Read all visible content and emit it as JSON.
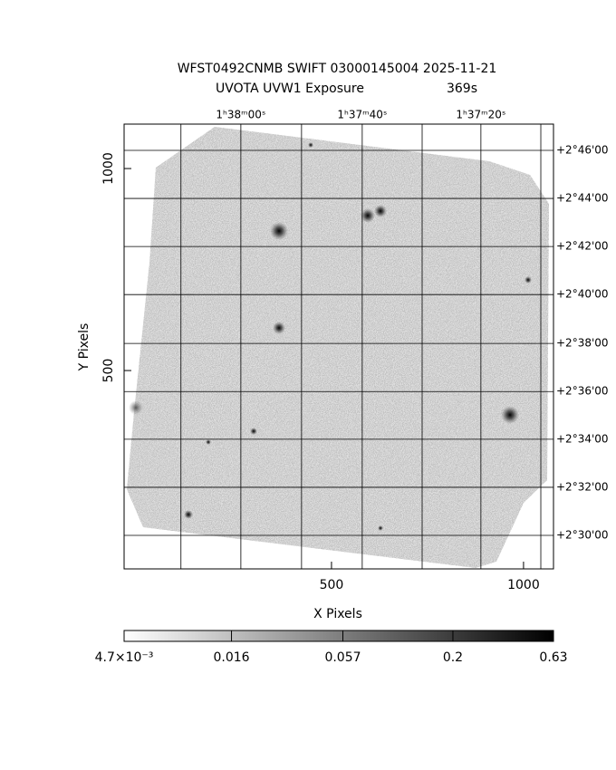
{
  "chart_data": {
    "type": "image",
    "title": "WFST0492CNMB SWIFT 03000145004 2025-11-21",
    "subtitle": "UVOTA UVW1 Exposure",
    "exposure": "369s",
    "xlabel": "X Pixels",
    "ylabel": "Y Pixels",
    "xlim": [
      -40,
      1078
    ],
    "ylim": [
      9,
      1110
    ],
    "xticks": [
      500,
      1000
    ],
    "yticks": [
      500,
      1000
    ],
    "ra_ticks": [
      {
        "value": 108
      },
      {
        "value": 264,
        "label": "1ʰ38ᵐ00ˢ"
      },
      {
        "value": 422
      },
      {
        "value": 580,
        "label": "1ʰ37ᵐ40ˢ"
      },
      {
        "value": 736
      },
      {
        "value": 889,
        "label": "1ʰ37ᵐ20ˢ"
      },
      {
        "value": 1045
      }
    ],
    "dec_ticks": [
      {
        "value": 1045,
        "label": "+2°46'00"
      },
      {
        "value": 926,
        "label": "+2°44'00"
      },
      {
        "value": 807,
        "label": "+2°42'00"
      },
      {
        "value": 688,
        "label": "+2°40'00"
      },
      {
        "value": 567,
        "label": "+2°38'00"
      },
      {
        "value": 448,
        "label": "+2°36'00"
      },
      {
        "value": 330,
        "label": "+2°34'00"
      },
      {
        "value": 211,
        "label": "+2°32'00"
      },
      {
        "value": 92,
        "label": "+2°30'00"
      }
    ],
    "colorbar": {
      "log": true,
      "lim": [
        0.0047,
        0.63
      ],
      "ticks": [
        {
          "value": 0.0047,
          "label": "4.7×10⁻³"
        },
        0.016,
        0.057,
        0.2,
        0.63
      ]
    }
  }
}
